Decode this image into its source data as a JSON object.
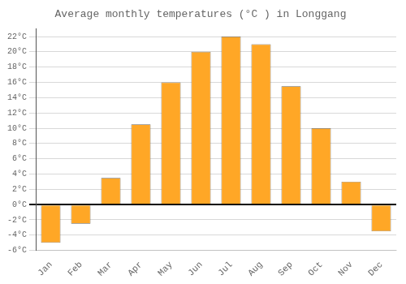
{
  "chart_data": {
    "type": "bar",
    "title": "Average monthly temperatures (°C ) in Longgang",
    "categories": [
      "Jan",
      "Feb",
      "Mar",
      "Apr",
      "May",
      "Jun",
      "Jul",
      "Aug",
      "Sep",
      "Oct",
      "Nov",
      "Dec"
    ],
    "values": [
      -5.0,
      -2.5,
      3.5,
      10.5,
      16.0,
      20.0,
      22.0,
      21.0,
      15.5,
      10.0,
      3.0,
      -3.5
    ],
    "color": "#FFA726",
    "ylim": [
      -6,
      23
    ],
    "yticks": [
      {
        "value": -6,
        "label": "-6°C"
      },
      {
        "value": -4,
        "label": "-4°C"
      },
      {
        "value": -2,
        "label": "-2°C"
      },
      {
        "value": 0,
        "label": "0°C"
      },
      {
        "value": 2,
        "label": "2°C"
      },
      {
        "value": 4,
        "label": "4°C"
      },
      {
        "value": 6,
        "label": "6°C"
      },
      {
        "value": 8,
        "label": "8°C"
      },
      {
        "value": 10,
        "label": "10°C"
      },
      {
        "value": 12,
        "label": "12°C"
      },
      {
        "value": 14,
        "label": "14°C"
      },
      {
        "value": 16,
        "label": "16°C"
      },
      {
        "value": 18,
        "label": "18°C"
      },
      {
        "value": 20,
        "label": "20°C"
      },
      {
        "value": 22,
        "label": "22°C"
      }
    ],
    "grid": true
  }
}
